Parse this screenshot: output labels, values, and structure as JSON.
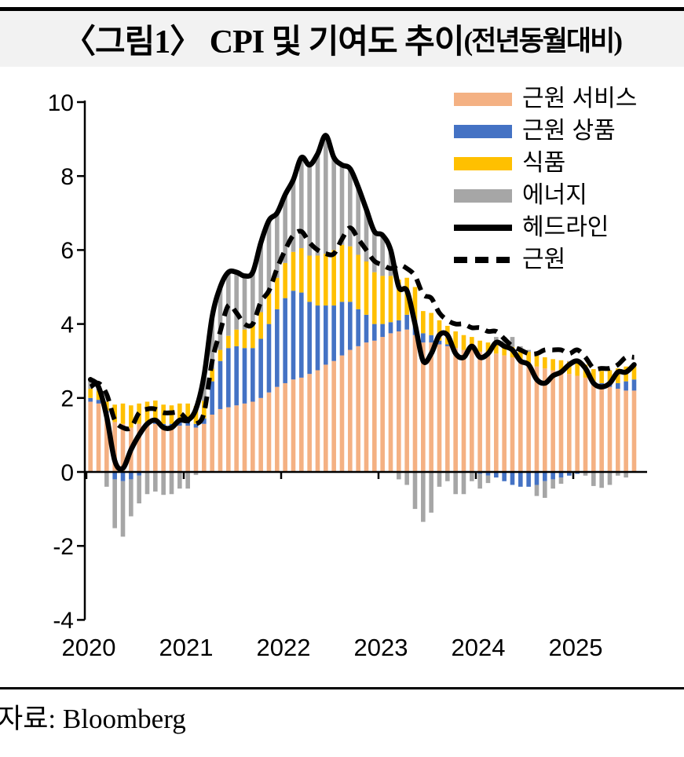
{
  "title": {
    "main": "〈그림1〉 CPI 및 기여도 추이",
    "paren": "(전년동월대비)"
  },
  "source": {
    "label": "자료: Bloomberg"
  },
  "colors": {
    "title_bg": "#f2f2f2",
    "axis": "#000000",
    "core_services": "#F4B183",
    "core_goods": "#4472C4",
    "food": "#FFC000",
    "energy": "#A6A6A6",
    "headline_line": "#000000",
    "core_line": "#000000"
  },
  "chart_data": {
    "type": "combo: stacked monthly bars (contributions) + lines (YoY %)",
    "x_start": "2020-01",
    "x_end": "2025-08",
    "x_year_ticks": [
      "2020",
      "2021",
      "2022",
      "2023",
      "2024",
      "2025"
    ],
    "y_ticks": [
      10,
      8,
      6,
      4,
      2,
      0,
      -2,
      -4
    ],
    "ylim": [
      -4,
      10
    ],
    "grid": false,
    "legend_position": "top-right",
    "x_months": [
      "2020-01",
      "2020-02",
      "2020-03",
      "2020-04",
      "2020-05",
      "2020-06",
      "2020-07",
      "2020-08",
      "2020-09",
      "2020-10",
      "2020-11",
      "2020-12",
      "2021-01",
      "2021-02",
      "2021-03",
      "2021-04",
      "2021-05",
      "2021-06",
      "2021-07",
      "2021-08",
      "2021-09",
      "2021-10",
      "2021-11",
      "2021-12",
      "2022-01",
      "2022-02",
      "2022-03",
      "2022-04",
      "2022-05",
      "2022-06",
      "2022-07",
      "2022-08",
      "2022-09",
      "2022-10",
      "2022-11",
      "2022-12",
      "2023-01",
      "2023-02",
      "2023-03",
      "2023-04",
      "2023-05",
      "2023-06",
      "2023-07",
      "2023-08",
      "2023-09",
      "2023-10",
      "2023-11",
      "2023-12",
      "2024-01",
      "2024-02",
      "2024-03",
      "2024-04",
      "2024-05",
      "2024-06",
      "2024-07",
      "2024-08",
      "2024-09",
      "2024-10",
      "2024-11",
      "2024-12",
      "2025-01",
      "2025-02",
      "2025-03",
      "2025-04",
      "2025-05",
      "2025-06",
      "2025-07",
      "2025-08"
    ],
    "bar_series": [
      {
        "name": "근원 서비스",
        "key": "core_services",
        "color": "#F4B183",
        "values": [
          1.9,
          1.85,
          1.6,
          1.35,
          1.3,
          1.2,
          1.3,
          1.35,
          1.3,
          1.2,
          1.2,
          1.25,
          1.25,
          1.2,
          1.3,
          1.55,
          1.7,
          1.75,
          1.8,
          1.85,
          1.9,
          2.0,
          2.15,
          2.3,
          2.4,
          2.5,
          2.55,
          2.65,
          2.75,
          2.9,
          3.0,
          3.15,
          3.3,
          3.4,
          3.5,
          3.55,
          3.65,
          3.75,
          3.8,
          3.85,
          3.7,
          3.5,
          3.5,
          3.45,
          3.4,
          3.35,
          3.3,
          3.3,
          3.25,
          3.2,
          3.2,
          3.15,
          3.1,
          3.05,
          2.95,
          2.85,
          2.8,
          2.75,
          2.7,
          2.65,
          2.6,
          2.55,
          2.45,
          2.35,
          2.3,
          2.25,
          2.2,
          2.2
        ]
      },
      {
        "name": "근원 상품",
        "key": "core_goods",
        "color": "#4472C4",
        "values": [
          0.1,
          0.1,
          0.05,
          -0.2,
          -0.25,
          -0.2,
          -0.1,
          0.0,
          0.1,
          0.1,
          0.1,
          0.1,
          0.1,
          0.1,
          0.15,
          0.9,
          1.3,
          1.6,
          1.6,
          1.5,
          1.45,
          1.6,
          1.85,
          2.1,
          2.3,
          2.4,
          2.3,
          1.95,
          1.75,
          1.6,
          1.5,
          1.45,
          1.3,
          1.0,
          0.75,
          0.45,
          0.35,
          0.3,
          0.3,
          0.4,
          0.4,
          0.25,
          0.2,
          0.1,
          0.05,
          0.0,
          0.0,
          0.0,
          -0.05,
          -0.1,
          -0.15,
          -0.25,
          -0.35,
          -0.4,
          -0.4,
          -0.35,
          -0.25,
          -0.2,
          -0.15,
          -0.1,
          -0.05,
          -0.02,
          0.0,
          0.05,
          0.1,
          0.15,
          0.25,
          0.3
        ]
      },
      {
        "name": "식품",
        "key": "food",
        "color": "#FFC000",
        "values": [
          0.25,
          0.25,
          0.25,
          0.47,
          0.55,
          0.6,
          0.55,
          0.55,
          0.53,
          0.52,
          0.5,
          0.5,
          0.5,
          0.48,
          0.47,
          0.33,
          0.3,
          0.33,
          0.45,
          0.5,
          0.62,
          0.72,
          0.82,
          0.85,
          0.95,
          1.05,
          1.2,
          1.25,
          1.35,
          1.4,
          1.5,
          1.54,
          1.5,
          1.47,
          1.44,
          1.4,
          1.3,
          1.25,
          1.1,
          1.0,
          0.9,
          0.6,
          0.6,
          0.55,
          0.5,
          0.45,
          0.4,
          0.35,
          0.3,
          0.3,
          0.3,
          0.3,
          0.28,
          0.28,
          0.3,
          0.3,
          0.3,
          0.3,
          0.32,
          0.33,
          0.35,
          0.35,
          0.33,
          0.33,
          0.35,
          0.4,
          0.4,
          0.35
        ]
      },
      {
        "name": "에너지",
        "key": "energy",
        "color": "#A6A6A6",
        "values": [
          0.25,
          0.1,
          -0.4,
          -1.32,
          -1.5,
          -1.0,
          -0.75,
          -0.6,
          -0.53,
          -0.62,
          -0.6,
          -0.45,
          -0.45,
          -0.08,
          0.68,
          1.42,
          1.7,
          1.72,
          1.55,
          1.45,
          1.43,
          1.88,
          1.98,
          1.75,
          1.85,
          1.95,
          2.45,
          2.45,
          2.75,
          3.2,
          2.5,
          2.16,
          2.1,
          1.83,
          1.41,
          1.1,
          1.1,
          0.7,
          -0.2,
          -0.35,
          -1.0,
          -1.35,
          -1.1,
          -0.4,
          -0.25,
          -0.6,
          -0.6,
          -0.25,
          -0.4,
          -0.2,
          0.15,
          0.2,
          0.27,
          0.07,
          0.05,
          -0.3,
          -0.45,
          -0.25,
          -0.17,
          0.02,
          0.1,
          -0.08,
          -0.38,
          -0.43,
          -0.35,
          -0.1,
          -0.15,
          0.05
        ]
      }
    ],
    "line_series": [
      {
        "name": "헤드라인",
        "key": "headline",
        "style": "solid",
        "color": "#000000",
        "values": [
          2.5,
          2.3,
          1.5,
          0.3,
          0.1,
          0.6,
          1.0,
          1.3,
          1.4,
          1.2,
          1.2,
          1.4,
          1.4,
          1.7,
          2.6,
          4.2,
          5.0,
          5.4,
          5.4,
          5.3,
          5.4,
          6.2,
          6.8,
          7.0,
          7.5,
          7.9,
          8.5,
          8.3,
          8.6,
          9.1,
          8.5,
          8.3,
          8.2,
          7.7,
          7.1,
          6.5,
          6.4,
          6.0,
          5.0,
          4.9,
          4.0,
          3.0,
          3.2,
          3.7,
          3.7,
          3.2,
          3.1,
          3.4,
          3.1,
          3.2,
          3.5,
          3.4,
          3.3,
          3.0,
          2.9,
          2.5,
          2.4,
          2.6,
          2.7,
          2.9,
          3.0,
          2.8,
          2.4,
          2.3,
          2.4,
          2.7,
          2.7,
          2.9
        ]
      },
      {
        "name": "근원",
        "key": "core",
        "style": "dashed",
        "color": "#000000",
        "values": [
          2.3,
          2.4,
          2.1,
          1.4,
          1.2,
          1.2,
          1.6,
          1.7,
          1.7,
          1.6,
          1.6,
          1.6,
          1.4,
          1.3,
          1.6,
          3.0,
          3.8,
          4.5,
          4.3,
          4.0,
          4.0,
          4.6,
          4.9,
          5.5,
          6.0,
          6.4,
          6.5,
          6.2,
          6.0,
          5.9,
          5.9,
          6.3,
          6.6,
          6.3,
          6.0,
          5.7,
          5.6,
          5.5,
          5.6,
          5.5,
          5.3,
          4.8,
          4.7,
          4.3,
          4.1,
          4.0,
          4.0,
          3.9,
          3.9,
          3.8,
          3.8,
          3.6,
          3.4,
          3.3,
          3.2,
          3.2,
          3.3,
          3.3,
          3.3,
          3.2,
          3.3,
          3.1,
          2.8,
          2.8,
          2.8,
          2.9,
          3.1,
          3.1
        ]
      }
    ],
    "legend": [
      {
        "label": "근원 서비스",
        "type": "bar",
        "key": "core_services"
      },
      {
        "label": "근원 상품",
        "type": "bar",
        "key": "core_goods"
      },
      {
        "label": "식품",
        "type": "bar",
        "key": "food"
      },
      {
        "label": "에너지",
        "type": "bar",
        "key": "energy"
      },
      {
        "label": "헤드라인",
        "type": "line-solid",
        "key": "headline"
      },
      {
        "label": "근원",
        "type": "line-dashed",
        "key": "core"
      }
    ]
  }
}
